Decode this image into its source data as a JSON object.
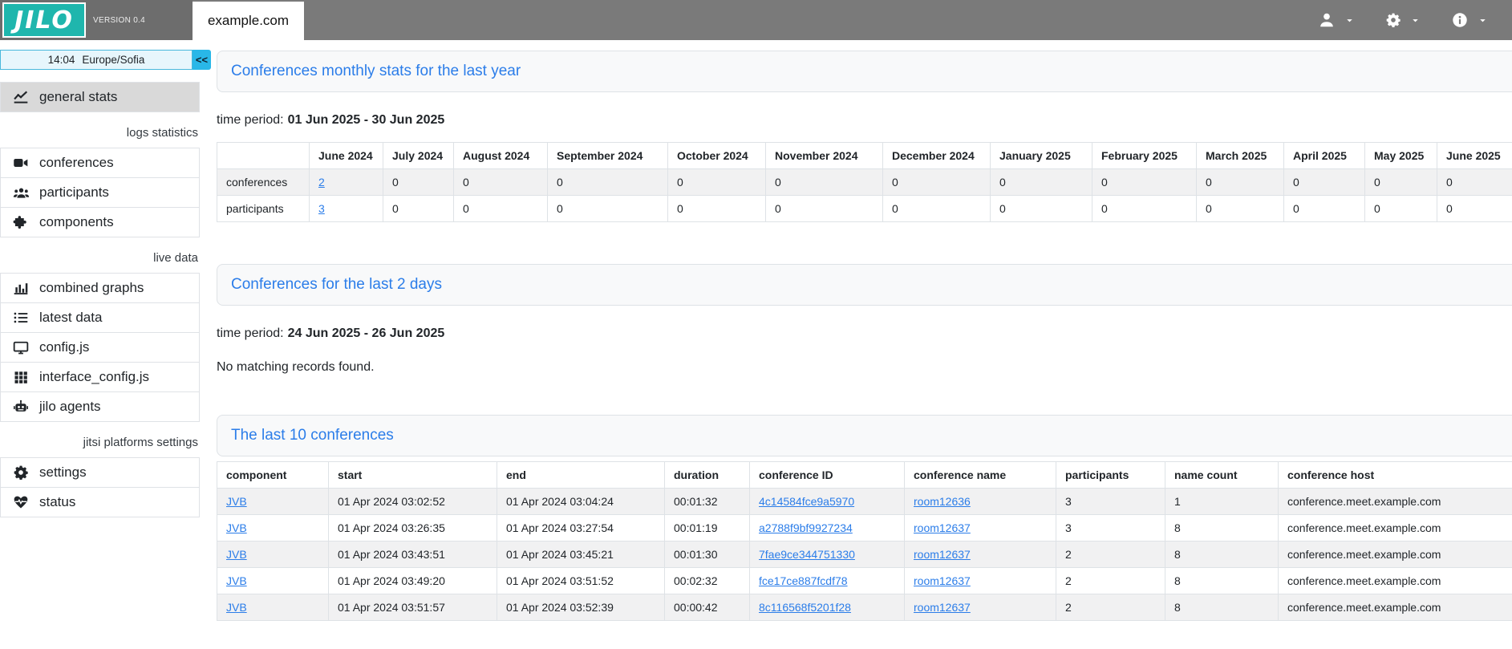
{
  "header": {
    "logo_text": "JILO",
    "version": "VERSION 0.4",
    "platform_tab": "example.com",
    "menus": [
      {
        "name": "user-menu",
        "icon": "user-icon"
      },
      {
        "name": "settings-menu",
        "icon": "gear-icon"
      },
      {
        "name": "info-menu",
        "icon": "info-icon"
      }
    ]
  },
  "sidebar": {
    "clock": {
      "time": "14:04",
      "timezone": "Europe/Sofia",
      "collapse_label": "<<"
    },
    "entries": [
      {
        "type": "item",
        "icon": "line-chart-icon",
        "label": "general stats",
        "active": true
      },
      {
        "type": "section",
        "label": "logs statistics"
      },
      {
        "type": "item",
        "icon": "video-camera-icon",
        "label": "conferences",
        "active": false
      },
      {
        "type": "item",
        "icon": "participants-icon",
        "label": "participants",
        "active": false
      },
      {
        "type": "item",
        "icon": "puzzle-icon",
        "label": "components",
        "active": false
      },
      {
        "type": "section",
        "label": "live data"
      },
      {
        "type": "item",
        "icon": "bar-chart-icon",
        "label": "combined graphs",
        "active": false
      },
      {
        "type": "item",
        "icon": "list-icon",
        "label": "latest data",
        "active": false
      },
      {
        "type": "item",
        "icon": "monitor-icon",
        "label": "config.js",
        "active": false
      },
      {
        "type": "item",
        "icon": "grid-icon",
        "label": "interface_config.js",
        "active": false
      },
      {
        "type": "item",
        "icon": "robot-icon",
        "label": "jilo agents",
        "active": false
      },
      {
        "type": "section",
        "label": "jitsi platforms settings"
      },
      {
        "type": "item",
        "icon": "gear-icon",
        "label": "settings",
        "active": false
      },
      {
        "type": "item",
        "icon": "heart-pulse-icon",
        "label": "status",
        "active": false
      }
    ]
  },
  "panels": {
    "monthly": {
      "title": "Conferences monthly stats for the last year",
      "time_period_label": "time period:",
      "time_period": "01 Jun 2025 - 30 Jun 2025",
      "table": {
        "columns": [
          "",
          "June 2024",
          "July 2024",
          "August 2024",
          "September 2024",
          "October 2024",
          "November 2024",
          "December 2024",
          "January 2025",
          "February 2025",
          "March 2025",
          "April 2025",
          "May 2025",
          "June 2025"
        ],
        "link_cols": [
          1
        ],
        "rows": [
          [
            "conferences",
            "2",
            "0",
            "0",
            "0",
            "0",
            "0",
            "0",
            "0",
            "0",
            "0",
            "0",
            "0",
            "0"
          ],
          [
            "participants",
            "3",
            "0",
            "0",
            "0",
            "0",
            "0",
            "0",
            "0",
            "0",
            "0",
            "0",
            "0",
            "0"
          ]
        ]
      }
    },
    "last2days": {
      "title": "Conferences for the last 2 days",
      "time_period_label": "time period:",
      "time_period": "24 Jun 2025 - 26 Jun 2025",
      "empty_message": "No matching records found."
    },
    "last10": {
      "title": "The last 10 conferences",
      "table": {
        "columns": [
          "component",
          "start",
          "end",
          "duration",
          "conference ID",
          "conference name",
          "participants",
          "name count",
          "conference host"
        ],
        "link_cols": [
          0,
          4,
          5
        ],
        "rows": [
          [
            "JVB",
            "01 Apr 2024 03:02:52",
            "01 Apr 2024 03:04:24",
            "00:01:32",
            "4c14584fce9a5970",
            "room12636",
            "3",
            "1",
            "conference.meet.example.com"
          ],
          [
            "JVB",
            "01 Apr 2024 03:26:35",
            "01 Apr 2024 03:27:54",
            "00:01:19",
            "a2788f9bf9927234",
            "room12637",
            "3",
            "8",
            "conference.meet.example.com"
          ],
          [
            "JVB",
            "01 Apr 2024 03:43:51",
            "01 Apr 2024 03:45:21",
            "00:01:30",
            "7fae9ce344751330",
            "room12637",
            "2",
            "8",
            "conference.meet.example.com"
          ],
          [
            "JVB",
            "01 Apr 2024 03:49:20",
            "01 Apr 2024 03:51:52",
            "00:02:32",
            "fce17ce887fcdf78",
            "room12637",
            "2",
            "8",
            "conference.meet.example.com"
          ],
          [
            "JVB",
            "01 Apr 2024 03:51:57",
            "01 Apr 2024 03:52:39",
            "00:00:42",
            "8c116568f5201f28",
            "room12637",
            "2",
            "8",
            "conference.meet.example.com"
          ]
        ]
      }
    }
  },
  "colors": {
    "brand_teal": "#1fb6ad",
    "topbar_gray": "#7a7a7a",
    "link_blue": "#2b7de9",
    "active_item_gray": "#d9d9d9",
    "timebar_cyan": "#29b7e8"
  }
}
